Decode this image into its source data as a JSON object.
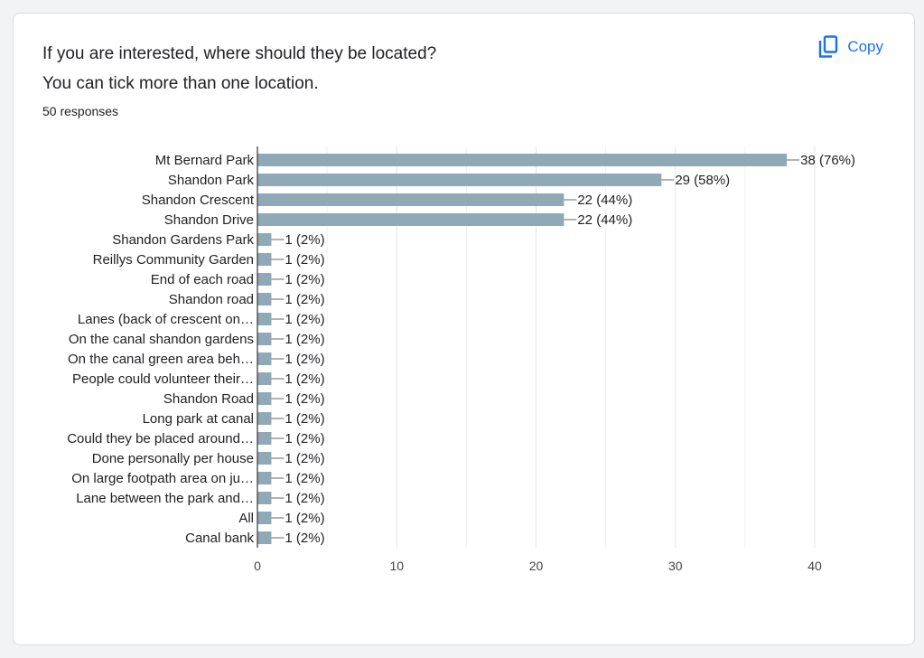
{
  "question": {
    "line1": "If you are interested, where should they be located?",
    "line2": "You can tick more than one location."
  },
  "responses_label": "50 responses",
  "copy_label": "Copy",
  "colors": {
    "bar": "#8fa9b7",
    "accent": "#1a73e8",
    "text": "#202124",
    "grid": "#e5e5e5"
  },
  "chart_data": {
    "type": "bar",
    "orientation": "horizontal",
    "categories": [
      "Mt Bernard Park",
      "Shandon Park",
      "Shandon Crescent",
      "Shandon Drive",
      "Shandon Gardens Park",
      "Reillys Community Garden",
      "End of each road",
      "Shandon road",
      "Lanes (back of crescent on…",
      "On the canal shandon gardens",
      "On the canal green area beh…",
      "People could volunteer their…",
      "Shandon Road",
      "Long park at canal",
      "Could they be placed around…",
      "Done personally per house",
      "On large footpath area on ju…",
      "Lane between the park and…",
      "All",
      "Canal bank"
    ],
    "values": [
      38,
      29,
      22,
      22,
      1,
      1,
      1,
      1,
      1,
      1,
      1,
      1,
      1,
      1,
      1,
      1,
      1,
      1,
      1,
      1
    ],
    "data_labels": [
      "38 (76%)",
      "29 (58%)",
      "22 (44%)",
      "22 (44%)",
      "1 (2%)",
      "1 (2%)",
      "1 (2%)",
      "1 (2%)",
      "1 (2%)",
      "1 (2%)",
      "1 (2%)",
      "1 (2%)",
      "1 (2%)",
      "1 (2%)",
      "1 (2%)",
      "1 (2%)",
      "1 (2%)",
      "1 (2%)",
      "1 (2%)",
      "1 (2%)"
    ],
    "xlim": [
      0,
      40
    ],
    "xticks": [
      0,
      10,
      20,
      30,
      40
    ],
    "grid": true,
    "title": "",
    "xlabel": "",
    "ylabel": ""
  }
}
